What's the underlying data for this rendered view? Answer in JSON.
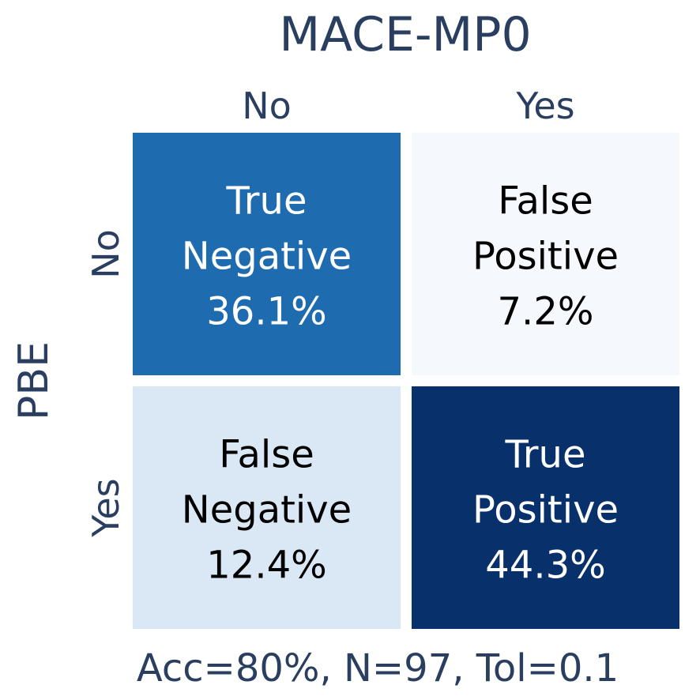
{
  "chart_data": {
    "type": "heatmap",
    "title": "MACE-MP0",
    "xlabel": "MACE-MP0",
    "ylabel": "PBE",
    "x_categories": [
      "No",
      "Yes"
    ],
    "y_categories": [
      "No",
      "Yes"
    ],
    "cells": [
      {
        "row": 0,
        "col": 0,
        "label": "True",
        "label2": "Negative",
        "value": 36.1,
        "display": "36.1%",
        "color": "#1f6bb0",
        "text_color": "#ffffff"
      },
      {
        "row": 0,
        "col": 1,
        "label": "False",
        "label2": "Positive",
        "value": 7.2,
        "display": "7.2%",
        "color": "#f5f9fe",
        "text_color": "#000000"
      },
      {
        "row": 1,
        "col": 0,
        "label": "False",
        "label2": "Negative",
        "value": 12.4,
        "display": "12.4%",
        "color": "#dae7f4",
        "text_color": "#000000"
      },
      {
        "row": 1,
        "col": 1,
        "label": "True",
        "label2": "Positive",
        "value": 44.3,
        "display": "44.3%",
        "color": "#08306b",
        "text_color": "#ffffff"
      }
    ],
    "colorscale": "Blues",
    "footer": "Acc=80%, N=97, Tol=0.1",
    "grid": false,
    "legend": "none"
  }
}
